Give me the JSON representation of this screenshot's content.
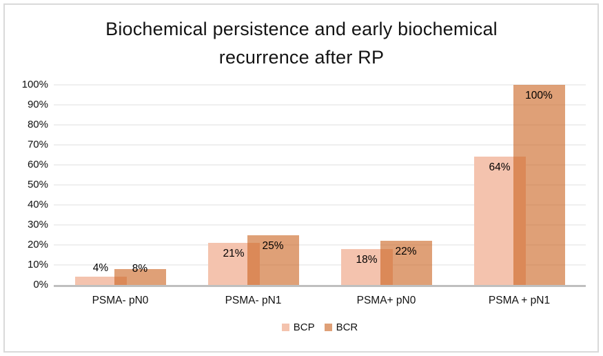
{
  "title": {
    "line1": "Biochemical persistence and early biochemical",
    "line2": "recurrence after RP"
  },
  "colors": {
    "bcp_fill": "#F4C3AE",
    "bcr_fill": "rgba(203, 102, 35, 0.62)",
    "bcr_flat": "#DFA077",
    "overlap": "#D98B59",
    "gridline": "#EFEFEF",
    "axis_line": "#BFBFBF",
    "frame_border": "#D9D9D9",
    "text": "#111111"
  },
  "chart_data": {
    "type": "bar",
    "title": "Biochemical persistence and early biochemical recurrence after RP",
    "categories": [
      "PSMA- pN0",
      "PSMA- pN1",
      "PSMA+ pN0",
      "PSMA + pN1"
    ],
    "series": [
      {
        "name": "BCP",
        "values": [
          4,
          21,
          18,
          64
        ],
        "color": "#F4C3AE",
        "fill": "#F4C3AE"
      },
      {
        "name": "BCR",
        "values": [
          8,
          25,
          22,
          100
        ],
        "color": "#DFA077",
        "fill": "rgba(203, 102, 35, 0.62)"
      }
    ],
    "value_suffix": "%",
    "data_labels": [
      "4%",
      "21%",
      "18%",
      "64%",
      "8%",
      "25%",
      "22%",
      "100%"
    ],
    "xlabel": "",
    "ylabel": "",
    "ylim": [
      0,
      100
    ],
    "ytick_step": 10,
    "ytick_labels": [
      "0%",
      "10%",
      "20%",
      "30%",
      "40%",
      "50%",
      "60%",
      "70%",
      "80%",
      "90%",
      "100%"
    ],
    "grid": true,
    "legend_position": "bottom",
    "bar_style": "overlapping"
  }
}
